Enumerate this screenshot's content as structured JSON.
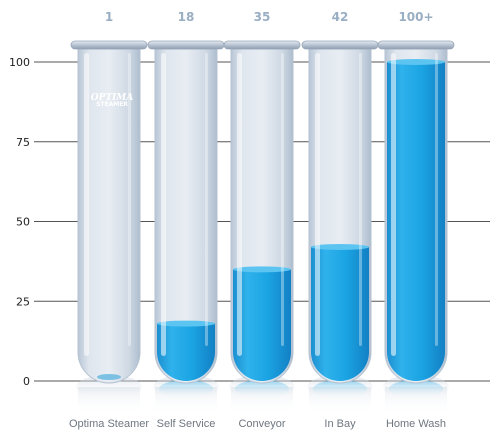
{
  "chart_data": {
    "type": "bar",
    "style": "test-tubes",
    "categories": [
      "Optima Steamer",
      "Self Service",
      "Conveyor",
      "In Bay",
      "Home Wash"
    ],
    "top_labels": [
      "1",
      "18",
      "35",
      "42",
      "100+"
    ],
    "values": [
      1,
      18,
      35,
      42,
      100
    ],
    "ylim": [
      0,
      100
    ],
    "yticks": [
      "0",
      "25",
      "50",
      "75",
      "100"
    ],
    "grid": true,
    "legend": "none",
    "colors": {
      "liquid": "#1aa6e4",
      "liquid_top": "#5cc4f0",
      "glass": "#c9d3df",
      "rim": "#a9b6c4",
      "grid": "#555555"
    },
    "logo_text": [
      "OPTIMA",
      "STEAMER"
    ]
  }
}
